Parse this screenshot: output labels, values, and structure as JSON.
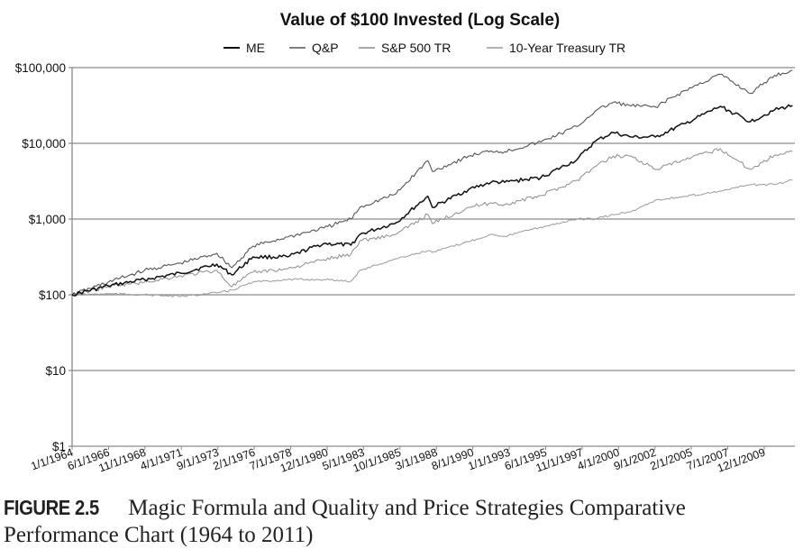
{
  "chart_data": {
    "type": "line",
    "title": "Value of $100 Invested (Log Scale)",
    "xlabel": "",
    "ylabel": "",
    "yscale": "log",
    "ylim": [
      1,
      100000
    ],
    "xlim": [
      1964.0,
      2011.9
    ],
    "grid": "horizontal",
    "legend_position": "top-center",
    "yticks": [
      {
        "value": 1,
        "label": "$1"
      },
      {
        "value": 10,
        "label": "$10"
      },
      {
        "value": 100,
        "label": "$100"
      },
      {
        "value": 1000,
        "label": "$1,000"
      },
      {
        "value": 10000,
        "label": "$10,000"
      },
      {
        "value": 100000,
        "label": "$100,000"
      }
    ],
    "xticks": [
      {
        "value": 1964.0,
        "label": "1/1/1964"
      },
      {
        "value": 1966.42,
        "label": "6/1/1966"
      },
      {
        "value": 1968.83,
        "label": "11/1/1968"
      },
      {
        "value": 1971.25,
        "label": "4/1/1971"
      },
      {
        "value": 1973.67,
        "label": "9/1/1973"
      },
      {
        "value": 1976.08,
        "label": "2/1/1976"
      },
      {
        "value": 1978.5,
        "label": "7/1/1978"
      },
      {
        "value": 1980.92,
        "label": "12/1/1980"
      },
      {
        "value": 1983.33,
        "label": "5/1/1983"
      },
      {
        "value": 1985.75,
        "label": "10/1/1985"
      },
      {
        "value": 1988.17,
        "label": "3/1/1988"
      },
      {
        "value": 1990.58,
        "label": "8/1/1990"
      },
      {
        "value": 1993.0,
        "label": "1/1/1993"
      },
      {
        "value": 1995.42,
        "label": "6/1/1995"
      },
      {
        "value": 1997.83,
        "label": "11/1/1997"
      },
      {
        "value": 2000.25,
        "label": "4/1/2000"
      },
      {
        "value": 2002.67,
        "label": "9/1/2002"
      },
      {
        "value": 2005.08,
        "label": "2/1/2005"
      },
      {
        "value": 2007.5,
        "label": "7/1/2007"
      },
      {
        "value": 2009.92,
        "label": "12/1/2009"
      }
    ],
    "x": [
      1964.0,
      1966.4,
      1968.8,
      1971.2,
      1973.6,
      1974.6,
      1976.0,
      1978.3,
      1980.7,
      1982.5,
      1983.1,
      1985.5,
      1987.6,
      1987.9,
      1990.3,
      1991.8,
      1992.7,
      1995.1,
      1997.5,
      1998.7,
      1999.9,
      2001.1,
      2002.7,
      2004.7,
      2007.0,
      2009.0,
      2010.6,
      2011.8
    ],
    "series": [
      {
        "name": "ME",
        "color": "#111111",
        "width": 1.5,
        "values": [
          100,
          131,
          159,
          193,
          254,
          183,
          316,
          316,
          476,
          452,
          627,
          896,
          2000,
          1430,
          2460,
          3060,
          3060,
          3530,
          6100,
          10600,
          13900,
          12100,
          12100,
          18300,
          30800,
          19300,
          27600,
          31600
        ]
      },
      {
        "name": "Q&P",
        "color": "#555555",
        "width": 1.1,
        "values": [
          100,
          147,
          210,
          261,
          353,
          228,
          439,
          578,
          761,
          1000,
          1431,
          2163,
          5914,
          4251,
          6767,
          7966,
          7748,
          10462,
          16657,
          26520,
          34847,
          31240,
          30344,
          50000,
          81600,
          45600,
          79000,
          92000
        ]
      },
      {
        "name": "S&P 500 TR",
        "color": "#8c8c8c",
        "width": 1.0,
        "values": [
          100,
          128,
          147,
          178,
          210,
          128,
          198,
          221,
          291,
          344,
          518,
          627,
          1150,
          870,
          1430,
          1640,
          1550,
          2040,
          3260,
          4900,
          6800,
          6800,
          4520,
          6100,
          8500,
          4520,
          6990,
          7800
        ]
      },
      {
        "name": "10-Year Treasury TR",
        "color": "#9a9a9a",
        "width": 1.0,
        "values": [
          100,
          103,
          100,
          95,
          106,
          115,
          147,
          159,
          159,
          151,
          210,
          299,
          383,
          363,
          503,
          627,
          594,
          781,
          1000,
          1000,
          1144,
          1250,
          1780,
          1990,
          2340,
          2840,
          2840,
          3260
        ]
      }
    ]
  },
  "caption": {
    "figure_label": "FIGURE 2.5",
    "text": "Magic Formula and Quality and Price Strategies Comparative Performance Chart (1964 to 2011)"
  }
}
